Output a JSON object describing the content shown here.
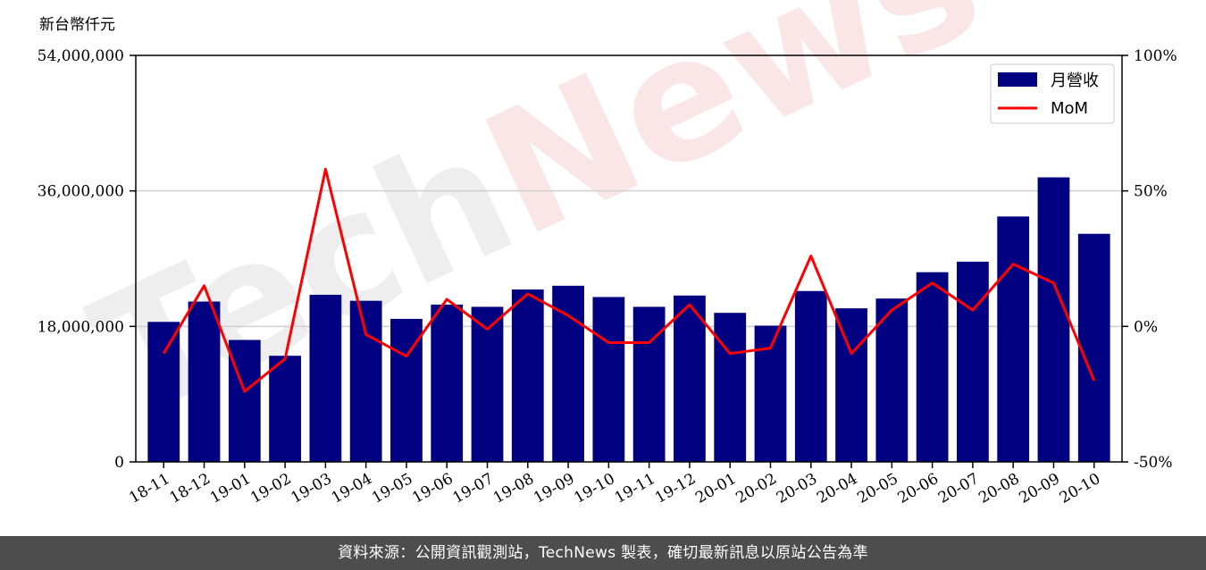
{
  "chart_data": {
    "type": "bar",
    "unit_label": "新台幣仟元",
    "categories": [
      "18-11",
      "18-12",
      "19-01",
      "19-02",
      "19-03",
      "19-04",
      "19-05",
      "19-06",
      "19-07",
      "19-08",
      "19-09",
      "19-10",
      "19-11",
      "19-12",
      "20-01",
      "20-02",
      "20-03",
      "20-04",
      "20-05",
      "20-06",
      "20-07",
      "20-08",
      "20-09",
      "20-10"
    ],
    "series": [
      {
        "name": "月營收",
        "type": "bar",
        "axis": "left",
        "color": "#000080",
        "values": [
          18600000,
          21300000,
          16200000,
          14100000,
          22200000,
          21400000,
          19000000,
          20900000,
          20600000,
          22900000,
          23400000,
          21900000,
          20600000,
          22100000,
          19800000,
          18100000,
          22700000,
          20400000,
          21700000,
          25200000,
          26600000,
          32600000,
          37800000,
          30300000
        ]
      },
      {
        "name": "MoM",
        "type": "line",
        "axis": "right",
        "color": "#ff0000",
        "values": [
          -10,
          15,
          -24,
          -12,
          58,
          -3,
          -11,
          10,
          -1,
          12,
          4,
          -6,
          -6,
          8,
          -10,
          -8,
          26,
          -10,
          6,
          16,
          6,
          23,
          16,
          -20
        ]
      }
    ],
    "y_left": {
      "range": [
        0,
        54000000
      ],
      "ticks": [
        0,
        18000000,
        36000000,
        54000000
      ],
      "tick_labels": [
        "0",
        "18,000,000",
        "36,000,000",
        "54,000,000"
      ]
    },
    "y_right": {
      "range": [
        -50,
        100
      ],
      "ticks": [
        -50,
        0,
        50,
        100
      ],
      "tick_labels": [
        "-50%",
        "0%",
        "50%",
        "100%"
      ]
    },
    "grid": "horizontal",
    "legend_position": "top-right"
  },
  "watermark": "TechNews",
  "footer": {
    "text": "資料來源：公開資訊觀測站，TechNews 製表，確切最新訊息以原站公告為準"
  }
}
